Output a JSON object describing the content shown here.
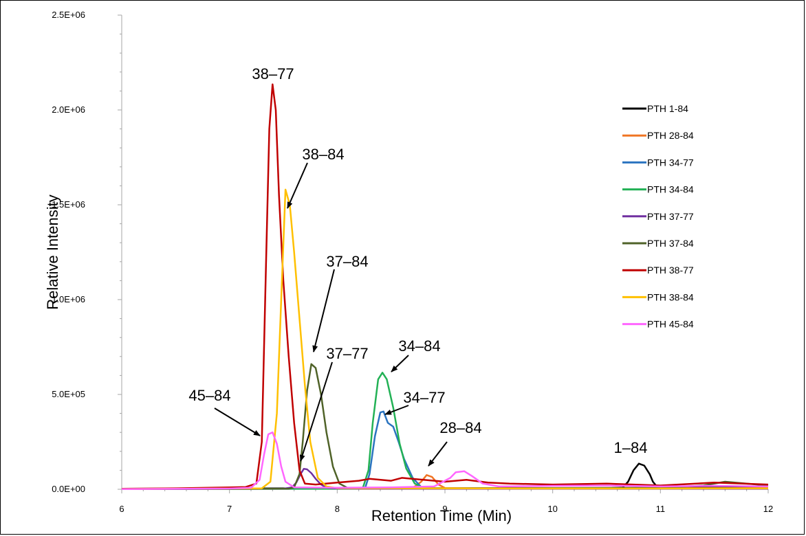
{
  "chart_data": {
    "type": "line",
    "title": "",
    "xlabel": "Retention Time (Min)",
    "ylabel": "Relative Intensity",
    "xlim": [
      6,
      12
    ],
    "ylim": [
      0,
      2500000
    ],
    "x_ticks": [
      "6",
      "7",
      "8",
      "9",
      "10",
      "11",
      "12"
    ],
    "y_ticks": [
      "0.0E+00",
      "5.0E+05",
      "1.0E+06",
      "1.5E+06",
      "2.0E+06",
      "2.5E+06"
    ],
    "grid": false,
    "legend_position": "right",
    "series": [
      {
        "name": "PTH 1-84",
        "color": "#000000",
        "points": [
          [
            6,
            3000
          ],
          [
            8,
            5000
          ],
          [
            10,
            6000
          ],
          [
            10.55,
            7000
          ],
          [
            10.65,
            9000
          ],
          [
            10.7,
            40000
          ],
          [
            10.75,
            100000
          ],
          [
            10.8,
            135000
          ],
          [
            10.85,
            125000
          ],
          [
            10.9,
            80000
          ],
          [
            10.93,
            40000
          ],
          [
            10.97,
            12000
          ],
          [
            11.1,
            9000
          ],
          [
            11.5,
            9000
          ],
          [
            12,
            8000
          ]
        ]
      },
      {
        "name": "PTH 28-84",
        "color": "#F07524",
        "points": [
          [
            6,
            2000
          ],
          [
            8.6,
            3000
          ],
          [
            8.7,
            6000
          ],
          [
            8.78,
            40000
          ],
          [
            8.83,
            75000
          ],
          [
            8.88,
            65000
          ],
          [
            8.94,
            25000
          ],
          [
            9.0,
            7000
          ],
          [
            9.3,
            5000
          ],
          [
            12,
            6000
          ]
        ]
      },
      {
        "name": "PTH 34-77",
        "color": "#2B74C0",
        "points": [
          [
            6,
            1500
          ],
          [
            8.2,
            2500
          ],
          [
            8.26,
            8000
          ],
          [
            8.3,
            80000
          ],
          [
            8.35,
            280000
          ],
          [
            8.4,
            405000
          ],
          [
            8.43,
            410000
          ],
          [
            8.47,
            350000
          ],
          [
            8.52,
            330000
          ],
          [
            8.57,
            250000
          ],
          [
            8.62,
            160000
          ],
          [
            8.7,
            60000
          ],
          [
            8.78,
            12000
          ],
          [
            8.9,
            4000
          ],
          [
            10,
            3000
          ],
          [
            12,
            5000
          ]
        ]
      },
      {
        "name": "PTH 34-84",
        "color": "#22B155",
        "points": [
          [
            6,
            1500
          ],
          [
            8.18,
            3000
          ],
          [
            8.24,
            10000
          ],
          [
            8.29,
            100000
          ],
          [
            8.33,
            350000
          ],
          [
            8.38,
            580000
          ],
          [
            8.42,
            615000
          ],
          [
            8.46,
            580000
          ],
          [
            8.52,
            430000
          ],
          [
            8.58,
            240000
          ],
          [
            8.64,
            110000
          ],
          [
            8.72,
            30000
          ],
          [
            8.8,
            6000
          ],
          [
            9.0,
            4000
          ],
          [
            10,
            3000
          ],
          [
            12,
            4000
          ]
        ]
      },
      {
        "name": "PTH 37-77",
        "color": "#7030A0",
        "points": [
          [
            6,
            1500
          ],
          [
            7.5,
            3000
          ],
          [
            7.58,
            10000
          ],
          [
            7.62,
            35000
          ],
          [
            7.66,
            80000
          ],
          [
            7.69,
            108000
          ],
          [
            7.72,
            105000
          ],
          [
            7.76,
            85000
          ],
          [
            7.8,
            55000
          ],
          [
            7.85,
            25000
          ],
          [
            7.9,
            8000
          ],
          [
            8.0,
            4000
          ],
          [
            8.5,
            3000
          ],
          [
            12,
            3000
          ]
        ]
      },
      {
        "name": "PTH 37-84",
        "color": "#4F6228",
        "points": [
          [
            6,
            1500
          ],
          [
            7.55,
            3000
          ],
          [
            7.6,
            10000
          ],
          [
            7.65,
            80000
          ],
          [
            7.68,
            250000
          ],
          [
            7.72,
            520000
          ],
          [
            7.76,
            660000
          ],
          [
            7.8,
            640000
          ],
          [
            7.85,
            500000
          ],
          [
            7.9,
            300000
          ],
          [
            7.96,
            120000
          ],
          [
            8.02,
            30000
          ],
          [
            8.1,
            6000
          ],
          [
            9,
            5000
          ],
          [
            10,
            6000
          ],
          [
            11,
            8000
          ],
          [
            11.4,
            20000
          ],
          [
            11.6,
            40000
          ],
          [
            11.8,
            30000
          ],
          [
            12,
            20000
          ]
        ]
      },
      {
        "name": "PTH 38-77",
        "color": "#C00000",
        "points": [
          [
            6,
            3000
          ],
          [
            6.5,
            5000
          ],
          [
            7.0,
            10000
          ],
          [
            7.15,
            12000
          ],
          [
            7.25,
            30000
          ],
          [
            7.3,
            250000
          ],
          [
            7.34,
            1200000
          ],
          [
            7.37,
            1900000
          ],
          [
            7.4,
            2135000
          ],
          [
            7.43,
            2000000
          ],
          [
            7.46,
            1550000
          ],
          [
            7.5,
            1100000
          ],
          [
            7.55,
            700000
          ],
          [
            7.6,
            350000
          ],
          [
            7.65,
            100000
          ],
          [
            7.7,
            30000
          ],
          [
            7.8,
            25000
          ],
          [
            8.0,
            35000
          ],
          [
            8.2,
            45000
          ],
          [
            8.3,
            55000
          ],
          [
            8.5,
            45000
          ],
          [
            8.6,
            60000
          ],
          [
            8.8,
            50000
          ],
          [
            9.0,
            40000
          ],
          [
            9.2,
            50000
          ],
          [
            9.4,
            35000
          ],
          [
            9.6,
            30000
          ],
          [
            10,
            25000
          ],
          [
            10.5,
            30000
          ],
          [
            11,
            20000
          ],
          [
            11.5,
            35000
          ],
          [
            12,
            25000
          ]
        ]
      },
      {
        "name": "PTH 38-84",
        "color": "#FFC000",
        "points": [
          [
            6,
            1500
          ],
          [
            7.3,
            5000
          ],
          [
            7.38,
            40000
          ],
          [
            7.44,
            400000
          ],
          [
            7.48,
            1000000
          ],
          [
            7.52,
            1580000
          ],
          [
            7.56,
            1500000
          ],
          [
            7.6,
            1250000
          ],
          [
            7.65,
            900000
          ],
          [
            7.7,
            550000
          ],
          [
            7.75,
            250000
          ],
          [
            7.82,
            60000
          ],
          [
            7.9,
            15000
          ],
          [
            8.0,
            6000
          ],
          [
            9,
            5000
          ],
          [
            10,
            4000
          ],
          [
            11,
            4000
          ],
          [
            12,
            5000
          ]
        ]
      },
      {
        "name": "PTH 45-84",
        "color": "#FF66FF",
        "points": [
          [
            6,
            1000
          ],
          [
            6.5,
            2000
          ],
          [
            7.0,
            4000
          ],
          [
            7.2,
            8000
          ],
          [
            7.28,
            50000
          ],
          [
            7.32,
            180000
          ],
          [
            7.36,
            290000
          ],
          [
            7.4,
            300000
          ],
          [
            7.44,
            240000
          ],
          [
            7.48,
            120000
          ],
          [
            7.52,
            40000
          ],
          [
            7.6,
            10000
          ],
          [
            8.0,
            8000
          ],
          [
            8.5,
            10000
          ],
          [
            8.9,
            15000
          ],
          [
            9.05,
            60000
          ],
          [
            9.1,
            90000
          ],
          [
            9.18,
            95000
          ],
          [
            9.25,
            70000
          ],
          [
            9.35,
            30000
          ],
          [
            9.5,
            15000
          ],
          [
            10,
            18000
          ],
          [
            10.5,
            20000
          ],
          [
            11,
            15000
          ],
          [
            11.5,
            18000
          ],
          [
            12,
            15000
          ]
        ]
      }
    ],
    "annotations": [
      {
        "label": "38–77",
        "x": 7.4,
        "y": 2135000
      },
      {
        "label": "38–84",
        "x": 7.52,
        "y": 1580000
      },
      {
        "label": "37–84",
        "x": 7.76,
        "y": 660000
      },
      {
        "label": "37–77",
        "x": 7.69,
        "y": 108000
      },
      {
        "label": "34–84",
        "x": 8.42,
        "y": 615000
      },
      {
        "label": "34–77",
        "x": 8.43,
        "y": 410000
      },
      {
        "label": "28–84",
        "x": 8.83,
        "y": 75000
      },
      {
        "label": "45–84",
        "x": 7.36,
        "y": 290000
      },
      {
        "label": "1–84",
        "x": 10.8,
        "y": 135000
      }
    ]
  }
}
